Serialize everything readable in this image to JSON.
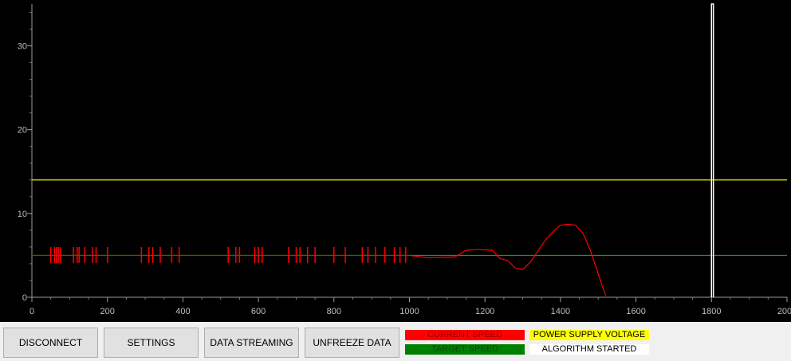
{
  "buttons": {
    "disconnect": "DISCONNECT",
    "settings": "SETTINGS",
    "data_streaming": "DATA STREAMING",
    "unfreeze": "UNFREEZE DATA"
  },
  "legend": {
    "current_speed": {
      "label": "CURRENT SPEED",
      "color": "#ff0000",
      "text_color": "#8b0000"
    },
    "target_speed": {
      "label": "TARGET SPEED",
      "color": "#008000",
      "text_color": "#004d00"
    },
    "power_supply_voltage": {
      "label": "POWER SUPPLY VOLTAGE",
      "color": "#ffff00",
      "text_color": "#000000"
    },
    "algorithm_started": {
      "label": "ALGORITHM STARTED",
      "color": "#ffffff",
      "text_color": "#000000"
    }
  },
  "chart_data": {
    "type": "line",
    "xlim": [
      0,
      2000
    ],
    "ylim": [
      0,
      35
    ],
    "x_ticks": [
      0,
      200,
      400,
      600,
      800,
      1000,
      1200,
      1400,
      1600,
      1800,
      2000
    ],
    "y_ticks": [
      0,
      10,
      20,
      30
    ],
    "series": [
      {
        "name": "POWER SUPPLY VOLTAGE",
        "color": "#ffff00",
        "x": [
          0,
          2000
        ],
        "y": [
          14,
          14
        ]
      },
      {
        "name": "TARGET SPEED",
        "color": "#00b000",
        "x": [
          0,
          2000
        ],
        "y": [
          5,
          5
        ]
      },
      {
        "name": "CURRENT SPEED",
        "color": "#ff0000",
        "x": [
          0,
          1000,
          1050,
          1120,
          1150,
          1180,
          1220,
          1240,
          1260,
          1280,
          1300,
          1320,
          1340,
          1360,
          1380,
          1400,
          1420,
          1440,
          1460,
          1480,
          1500,
          1510,
          1520
        ],
        "y": [
          5,
          5,
          4.7,
          4.8,
          5.6,
          5.7,
          5.6,
          4.6,
          4.4,
          3.5,
          3.3,
          4.2,
          5.5,
          6.8,
          7.8,
          8.6,
          8.7,
          8.6,
          7.6,
          5.5,
          2.8,
          1.4,
          0.2
        ],
        "spike_x": [
          50,
          60,
          65,
          70,
          75,
          110,
          120,
          125,
          140,
          160,
          170,
          200,
          290,
          310,
          320,
          340,
          370,
          390,
          520,
          540,
          550,
          590,
          600,
          610,
          680,
          700,
          710,
          730,
          750,
          800,
          830,
          875,
          890,
          910,
          935,
          960,
          975,
          990
        ],
        "spike_low": 4.1,
        "spike_high": 6.0
      },
      {
        "name": "ALGORITHM STARTED",
        "color": "#ffffff",
        "x": [
          1800,
          1800,
          1805,
          1805
        ],
        "y": [
          0,
          35,
          35,
          0
        ]
      }
    ]
  }
}
